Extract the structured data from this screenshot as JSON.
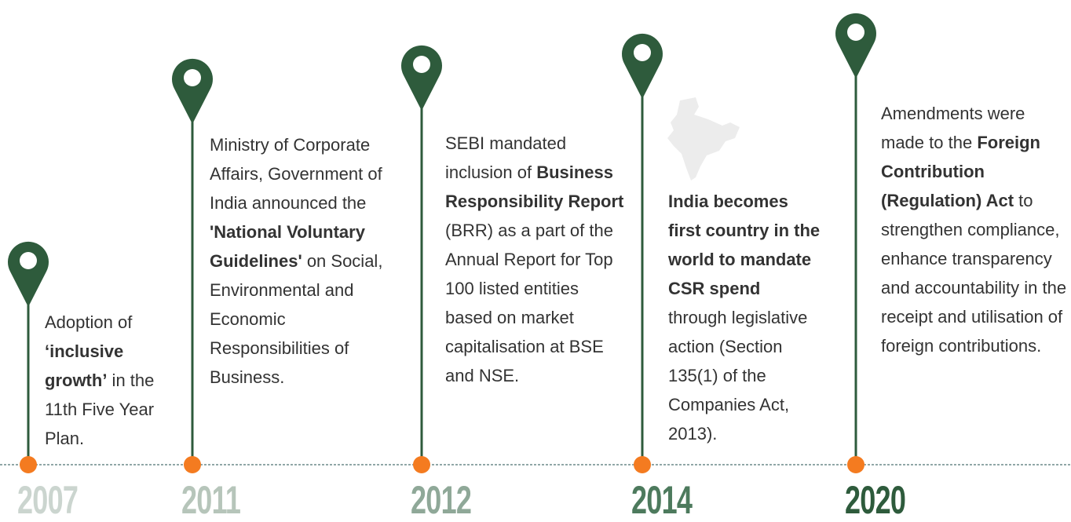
{
  "events": [
    {
      "year": "2007",
      "text": [
        {
          "t": "Adoption of "
        },
        {
          "t": "‘inclusive growth’",
          "b": true
        },
        {
          "t": " in the 11th Five Year Plan."
        }
      ]
    },
    {
      "year": "2011",
      "text": [
        {
          "t": "Ministry of Corporate Affairs, Government of India announced the "
        },
        {
          "t": "'National Voluntary Guidelines'",
          "b": true
        },
        {
          "t": " on Social, Environmental and Economic Responsibilities of Business."
        }
      ]
    },
    {
      "year": "2012",
      "text": [
        {
          "t": "SEBI mandated inclusion of "
        },
        {
          "t": "Business Responsibility Report",
          "b": true
        },
        {
          "t": " (BRR) as a part of the Annual Report for Top 100 listed entities based on market capitalisation at BSE and NSE."
        }
      ]
    },
    {
      "year": "2014",
      "text": [
        {
          "t": "India becomes first country in the world to mandate CSR spend",
          "b": true
        },
        {
          "t": " through legislative action (Section 135(1) of the Companies Act, 2013)."
        }
      ]
    },
    {
      "year": "2020",
      "text": [
        {
          "t": "Amendments were made to the "
        },
        {
          "t": "Foreign Contribution (Regulation) Act",
          "b": true
        },
        {
          "t": " to strengthen compliance, enhance transparency and accountability in the receipt and utilisation of foreign contributions."
        }
      ]
    }
  ]
}
